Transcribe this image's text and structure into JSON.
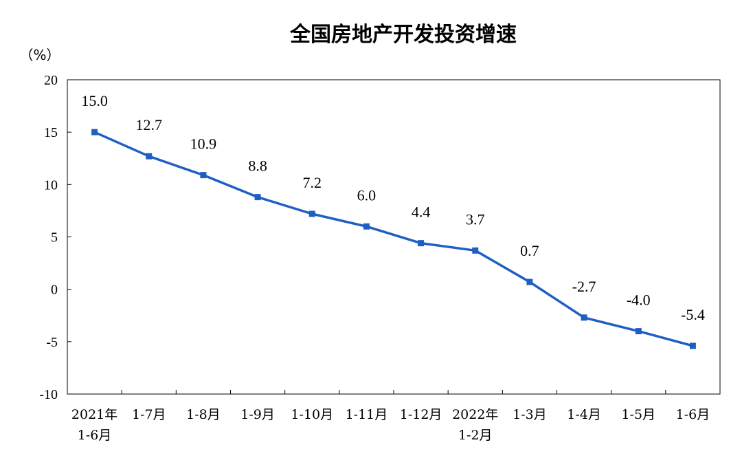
{
  "chart_data": {
    "type": "line",
    "title": "全国房地产开发投资增速",
    "unit": "（%）",
    "categories": [
      [
        "2021年",
        "1-6月"
      ],
      [
        "1-7月"
      ],
      [
        "1-8月"
      ],
      [
        "1-9月"
      ],
      [
        "1-10月"
      ],
      [
        "1-11月"
      ],
      [
        "1-12月"
      ],
      [
        "2022年",
        "1-2月"
      ],
      [
        "1-3月"
      ],
      [
        "1-4月"
      ],
      [
        "1-5月"
      ],
      [
        "1-6月"
      ]
    ],
    "values": [
      15.0,
      12.7,
      10.9,
      8.8,
      7.2,
      6.0,
      4.4,
      3.7,
      0.7,
      -2.7,
      -4.0,
      -5.4
    ],
    "data_labels": [
      "15.0",
      "12.7",
      "10.9",
      "8.8",
      "7.2",
      "6.0",
      "4.4",
      "3.7",
      "0.7",
      "-2.7",
      "-4.0",
      "-5.4"
    ],
    "ylim": [
      -10,
      20
    ],
    "yticks": [
      -10,
      -5,
      0,
      5,
      10,
      15,
      20
    ],
    "ytick_labels": [
      "-10",
      "-5",
      "0",
      "5",
      "10",
      "15",
      "20"
    ],
    "grid": false,
    "legend": "none",
    "line_color": "#1f5fc4",
    "marker": "square",
    "axis_color": "#000000"
  }
}
